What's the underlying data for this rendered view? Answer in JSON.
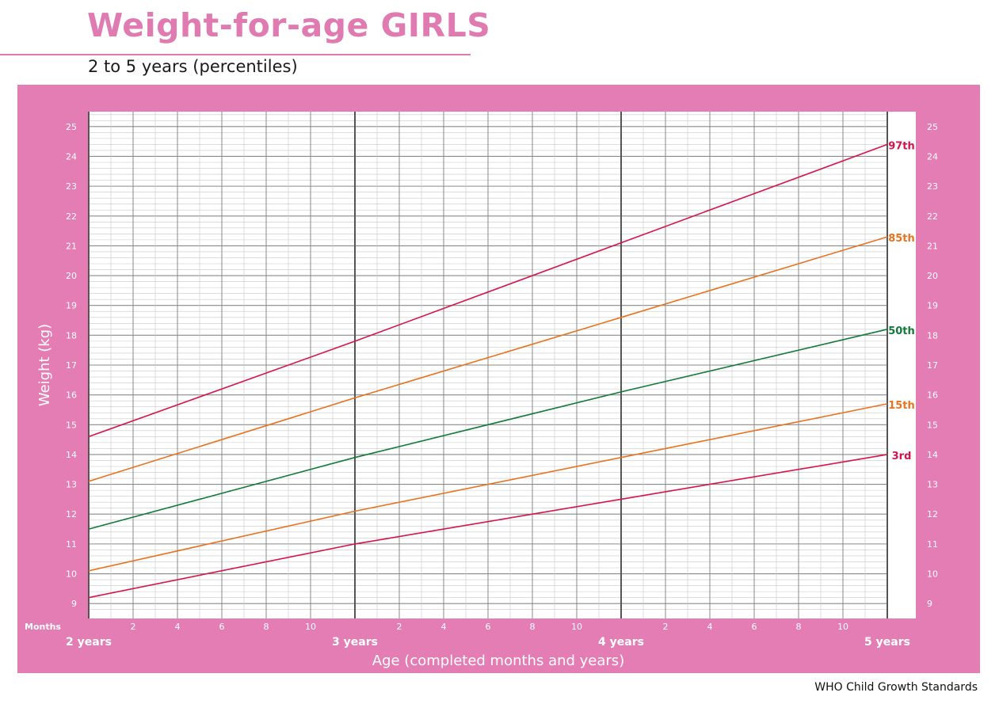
{
  "header": {
    "title": "Weight-for-age GIRLS",
    "subtitle": "2 to 5 years (percentiles)"
  },
  "footer": {
    "credit": "WHO Child Growth Standards"
  },
  "colors": {
    "panel": "#e47db4",
    "grid_minor": "#c8c8c8",
    "grid_major": "#8a8a8a",
    "grid_year": "#555555",
    "p3": "#d4144a",
    "p15": "#e8731e",
    "p50": "#117a3a",
    "p85": "#e8731e",
    "p97": "#d4144a"
  },
  "chart_data": {
    "type": "line",
    "title": "Weight-for-age GIRLS",
    "subtitle": "2 to 5 years (percentiles)",
    "xlabel": "Age (completed months and years)",
    "ylabel": "Weight (kg)",
    "months_label": "Months",
    "xlim": [
      24,
      60
    ],
    "ylim": [
      8.5,
      25.5
    ],
    "x_year_ticks": [
      {
        "month": 24,
        "label": "2 years"
      },
      {
        "month": 36,
        "label": "3 years"
      },
      {
        "month": 48,
        "label": "4 years"
      },
      {
        "month": 60,
        "label": "5 years"
      }
    ],
    "x_month_ticks": [
      {
        "month": 26,
        "label": "2"
      },
      {
        "month": 28,
        "label": "4"
      },
      {
        "month": 30,
        "label": "6"
      },
      {
        "month": 32,
        "label": "8"
      },
      {
        "month": 34,
        "label": "10"
      },
      {
        "month": 38,
        "label": "2"
      },
      {
        "month": 40,
        "label": "4"
      },
      {
        "month": 42,
        "label": "6"
      },
      {
        "month": 44,
        "label": "8"
      },
      {
        "month": 46,
        "label": "10"
      },
      {
        "month": 50,
        "label": "2"
      },
      {
        "month": 52,
        "label": "4"
      },
      {
        "month": 54,
        "label": "6"
      },
      {
        "month": 56,
        "label": "8"
      },
      {
        "month": 58,
        "label": "10"
      }
    ],
    "y_ticks": [
      9,
      10,
      11,
      12,
      13,
      14,
      15,
      16,
      17,
      18,
      19,
      20,
      21,
      22,
      23,
      24,
      25
    ],
    "grid": true,
    "series": [
      {
        "name": "97th",
        "color": "#d4144a",
        "x": [
          24,
          36,
          48,
          60
        ],
        "values": [
          14.6,
          17.8,
          21.1,
          24.4
        ]
      },
      {
        "name": "85th",
        "color": "#e8731e",
        "x": [
          24,
          36,
          48,
          60
        ],
        "values": [
          13.1,
          15.9,
          18.6,
          21.3
        ]
      },
      {
        "name": "50th",
        "color": "#117a3a",
        "x": [
          24,
          36,
          48,
          60
        ],
        "values": [
          11.5,
          13.9,
          16.1,
          18.2
        ]
      },
      {
        "name": "15th",
        "color": "#e8731e",
        "x": [
          24,
          36,
          48,
          60
        ],
        "values": [
          10.1,
          12.1,
          13.9,
          15.7
        ]
      },
      {
        "name": "3rd",
        "color": "#d4144a",
        "x": [
          24,
          36,
          48,
          60
        ],
        "values": [
          9.2,
          11.0,
          12.5,
          14.0
        ]
      }
    ]
  }
}
